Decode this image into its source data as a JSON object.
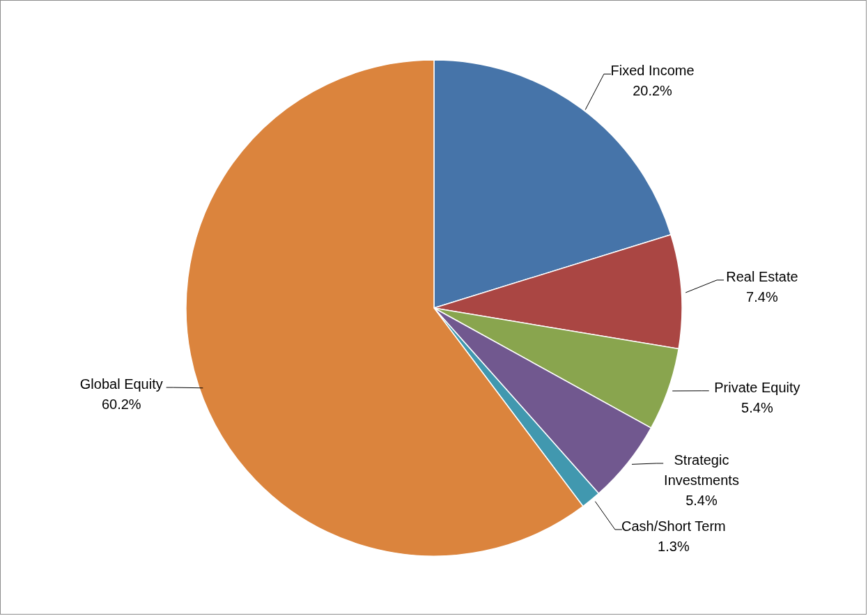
{
  "chart_data": {
    "type": "pie",
    "categories": [
      "Fixed Income",
      "Real Estate",
      "Private Equity",
      "Strategic Investments",
      "Cash/Short Term",
      "Global Equity"
    ],
    "values": [
      20.2,
      7.4,
      5.4,
      5.4,
      1.3,
      60.2
    ],
    "value_labels": [
      "20.2%",
      "7.4%",
      "5.4%",
      "5.4%",
      "1.3%",
      "60.2%"
    ],
    "colors": [
      "#4674a9",
      "#aa4643",
      "#89a54e",
      "#71588f",
      "#4198af",
      "#db843d"
    ],
    "legend": false
  }
}
